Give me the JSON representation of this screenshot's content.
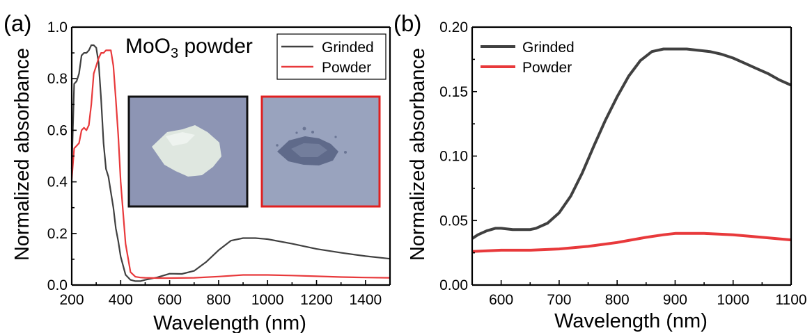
{
  "figure": {
    "panel_a_label": "(a)",
    "panel_b_label": "(b)",
    "inset_title_main": "MoO",
    "inset_title_sub": "3",
    "inset_title_rest": " powder"
  },
  "colors": {
    "grinded": "#404040",
    "powder": "#e8393b",
    "inset_a_border": "#111111",
    "inset_b_border": "#e02020"
  },
  "chart_data": [
    {
      "type": "line",
      "panel": "a",
      "xlabel": "Wavelength (nm)",
      "ylabel": "Normalized absorbance",
      "xlim": [
        200,
        1500
      ],
      "ylim": [
        0,
        1.0
      ],
      "xticks": [
        200,
        400,
        600,
        800,
        1000,
        1200,
        1400
      ],
      "yticks": [
        0.0,
        0.2,
        0.4,
        0.6,
        0.8,
        1.0
      ],
      "ytick_labels": [
        "0.0",
        "0.2",
        "0.4",
        "0.6",
        "0.8",
        "1.0"
      ],
      "legend": "top-right",
      "series": [
        {
          "name": "Grinded",
          "color": "#404040",
          "x": [
            200,
            210,
            220,
            230,
            240,
            250,
            260,
            270,
            280,
            290,
            300,
            310,
            320,
            330,
            340,
            350,
            360,
            370,
            380,
            390,
            400,
            420,
            440,
            460,
            480,
            500,
            550,
            600,
            650,
            700,
            750,
            800,
            850,
            900,
            950,
            1000,
            1100,
            1200,
            1300,
            1400,
            1500
          ],
          "y": [
            0.45,
            0.78,
            0.79,
            0.82,
            0.89,
            0.9,
            0.9,
            0.91,
            0.93,
            0.93,
            0.92,
            0.86,
            0.72,
            0.55,
            0.45,
            0.42,
            0.36,
            0.3,
            0.22,
            0.17,
            0.11,
            0.04,
            0.02,
            0.015,
            0.015,
            0.02,
            0.03,
            0.044,
            0.043,
            0.055,
            0.09,
            0.135,
            0.172,
            0.182,
            0.182,
            0.178,
            0.16,
            0.14,
            0.125,
            0.112,
            0.102
          ]
        },
        {
          "name": "Powder",
          "color": "#e8393b",
          "x": [
            200,
            210,
            220,
            230,
            240,
            250,
            260,
            270,
            280,
            290,
            300,
            310,
            320,
            330,
            340,
            350,
            360,
            370,
            380,
            390,
            400,
            420,
            440,
            460,
            480,
            500,
            550,
            600,
            700,
            800,
            900,
            1000,
            1100,
            1200,
            1300,
            1400,
            1500
          ],
          "y": [
            0.41,
            0.53,
            0.54,
            0.55,
            0.6,
            0.61,
            0.6,
            0.62,
            0.7,
            0.82,
            0.85,
            0.88,
            0.9,
            0.9,
            0.91,
            0.91,
            0.91,
            0.85,
            0.72,
            0.58,
            0.4,
            0.16,
            0.05,
            0.032,
            0.029,
            0.028,
            0.027,
            0.027,
            0.028,
            0.033,
            0.039,
            0.039,
            0.037,
            0.034,
            0.031,
            0.029,
            0.028
          ]
        }
      ]
    },
    {
      "type": "line",
      "panel": "b",
      "xlabel": "Wavelength (nm)",
      "ylabel": "Normalized absorbance",
      "xlim": [
        550,
        1100
      ],
      "ylim": [
        0,
        0.2
      ],
      "xticks": [
        600,
        700,
        800,
        900,
        1000,
        1100
      ],
      "yticks": [
        0.0,
        0.05,
        0.1,
        0.15,
        0.2
      ],
      "ytick_labels": [
        "0.00",
        "0.05",
        "0.10",
        "0.15",
        "0.20"
      ],
      "legend": "top-left",
      "series": [
        {
          "name": "Grinded",
          "color": "#404040",
          "x": [
            550,
            560,
            575,
            590,
            600,
            620,
            640,
            650,
            660,
            680,
            700,
            720,
            740,
            760,
            780,
            800,
            820,
            840,
            860,
            880,
            900,
            920,
            940,
            960,
            980,
            1000,
            1020,
            1040,
            1060,
            1080,
            1100
          ],
          "y": [
            0.036,
            0.039,
            0.042,
            0.044,
            0.044,
            0.043,
            0.043,
            0.043,
            0.044,
            0.048,
            0.056,
            0.069,
            0.087,
            0.108,
            0.128,
            0.146,
            0.162,
            0.174,
            0.181,
            0.183,
            0.183,
            0.183,
            0.182,
            0.181,
            0.179,
            0.176,
            0.172,
            0.168,
            0.164,
            0.159,
            0.155
          ]
        },
        {
          "name": "Powder",
          "color": "#e8393b",
          "x": [
            550,
            600,
            650,
            700,
            750,
            800,
            850,
            880,
            900,
            950,
            1000,
            1050,
            1100
          ],
          "y": [
            0.026,
            0.027,
            0.027,
            0.028,
            0.03,
            0.033,
            0.037,
            0.039,
            0.04,
            0.04,
            0.039,
            0.037,
            0.035
          ]
        }
      ]
    }
  ]
}
